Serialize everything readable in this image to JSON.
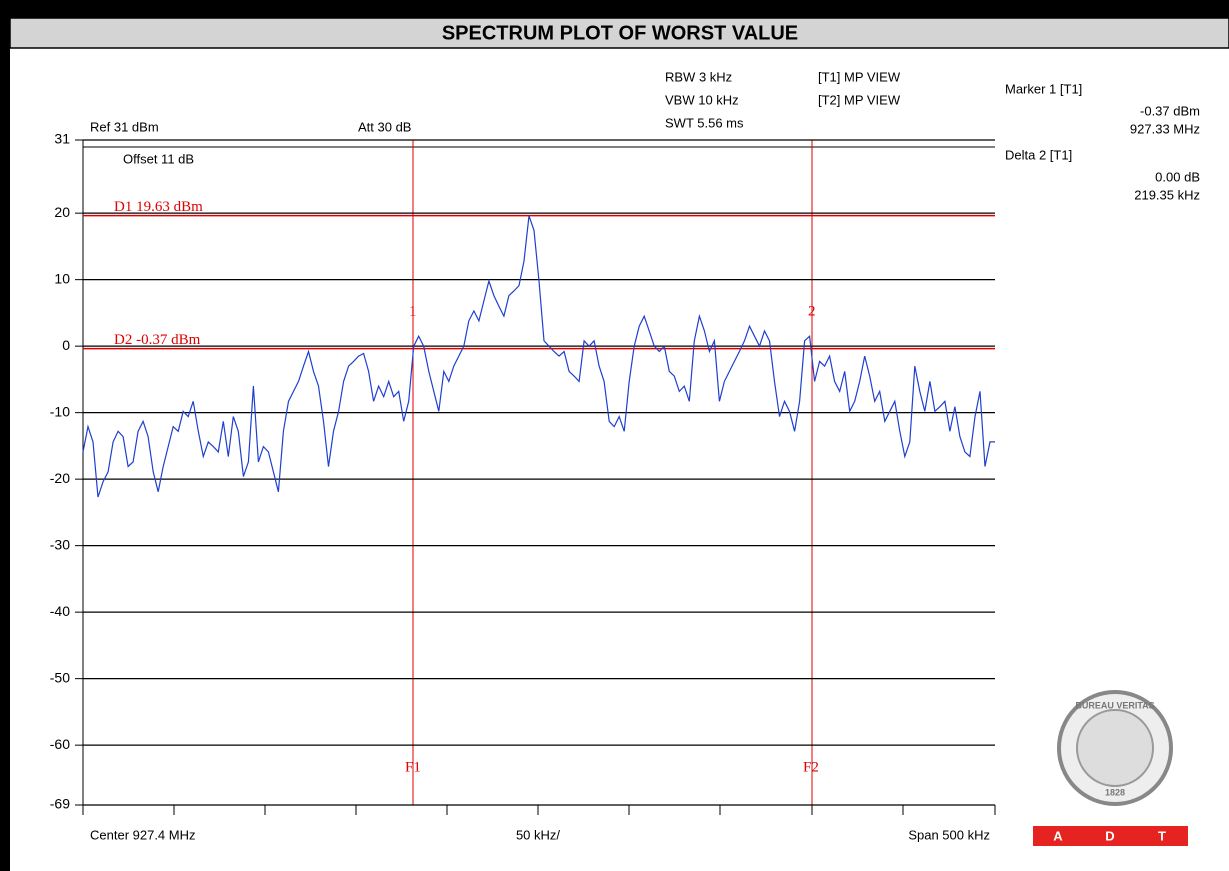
{
  "header": {
    "title": "SPECTRUM PLOT OF WORST VALUE"
  },
  "settings": {
    "rbw": "RBW 3 kHz",
    "vbw": "VBW 10 kHz",
    "swt": "SWT 5.56 ms",
    "t1": "[T1] MP VIEW",
    "t2": "[T2] MP VIEW",
    "ref": "Ref 31 dBm",
    "att": "Att 30 dB",
    "offset": "Offset 11 dB"
  },
  "marker_info": {
    "marker1": "Marker 1 [T1]",
    "marker1_level": "-0.37 dBm",
    "marker1_freq": "927.33 MHz",
    "delta2": "Delta 2 [T1]",
    "delta2_level": "0.00 dB",
    "delta2_freq": "219.35 kHz"
  },
  "logo": {
    "ring": "BUREAU VERITAS",
    "year": "1828",
    "letters": [
      "A",
      "D",
      "T"
    ]
  },
  "chart_data": {
    "type": "line",
    "color": "#1f3fd0",
    "x_labels": {
      "center": "Center 927.4 MHz",
      "div": "50 kHz/",
      "span": "Span 500 kHz"
    },
    "ylim": [
      -69,
      31
    ],
    "yticks": [
      31,
      20,
      10,
      0,
      -10,
      -20,
      -30,
      -40,
      -50,
      -60,
      -69
    ],
    "grid": true,
    "display_lines": [
      {
        "label": "D1 19.63 dBm",
        "value": 19.63
      },
      {
        "label": "D2 -0.37 dBm",
        "value": -0.37
      }
    ],
    "markers": [
      "1",
      "2"
    ],
    "frequency_lines": [
      "F1",
      "F2"
    ],
    "values": [
      -15.9,
      -12.1,
      -14.4,
      -22.7,
      -20.4,
      -18.9,
      -14.4,
      -12.8,
      -13.6,
      -18.1,
      -17.4,
      -12.8,
      -11.3,
      -13.6,
      -18.9,
      -21.9,
      -18.1,
      -15.1,
      -12.1,
      -12.8,
      -9.8,
      -10.6,
      -8.3,
      -12.8,
      -16.6,
      -14.4,
      -15.1,
      -15.9,
      -11.3,
      -16.6,
      -10.6,
      -12.8,
      -19.6,
      -17.4,
      -6.0,
      -17.4,
      -15.1,
      -15.9,
      -18.9,
      -21.9,
      -12.8,
      -8.3,
      -6.8,
      -5.3,
      -3.0,
      -0.8,
      -3.8,
      -6.0,
      -11.3,
      -18.1,
      -12.8,
      -9.8,
      -5.3,
      -3.0,
      -2.3,
      -1.5,
      -1.1,
      -3.8,
      -8.3,
      -6.0,
      -7.6,
      -5.3,
      -7.6,
      -6.8,
      -11.3,
      -8.3,
      0,
      1.5,
      0,
      -3.8,
      -6.8,
      -9.8,
      -3.8,
      -5.3,
      -3.0,
      -1.5,
      0,
      3.8,
      5.3,
      3.8,
      6.8,
      9.8,
      7.6,
      6.0,
      4.5,
      7.6,
      8.3,
      9.1,
      12.8,
      19.6,
      17.4,
      9.8,
      0.8,
      0,
      -0.8,
      -1.5,
      -0.8,
      -3.8,
      -4.5,
      -5.3,
      0.8,
      0,
      0.8,
      -3.0,
      -5.3,
      -11.3,
      -12.1,
      -10.6,
      -12.8,
      -5.3,
      0,
      3.0,
      4.5,
      2.3,
      0,
      -0.8,
      0,
      -3.8,
      -4.5,
      -6.8,
      -6.0,
      -8.3,
      0.8,
      4.5,
      2.3,
      -0.8,
      0.8,
      -8.3,
      -5.3,
      -3.8,
      -2.3,
      -0.8,
      0.8,
      3.0,
      1.5,
      0,
      2.3,
      0.8,
      -5.3,
      -10.6,
      -8.3,
      -9.8,
      -12.8,
      -8.3,
      0.8,
      1.5,
      -5.3,
      -2.3,
      -3.0,
      -1.5,
      -5.3,
      -6.8,
      -3.8,
      -9.8,
      -8.3,
      -5.3,
      -1.5,
      -4.5,
      -8.3,
      -6.8,
      -11.3,
      -9.8,
      -8.3,
      -12.8,
      -16.6,
      -14.4,
      -3.0,
      -6.8,
      -9.8,
      -5.3,
      -9.8,
      -9.1,
      -8.3,
      -12.8,
      -9.1,
      -13.6,
      -15.9,
      -16.6,
      -10.6,
      -6.8,
      -18.1,
      -14.4,
      -14.4
    ]
  }
}
